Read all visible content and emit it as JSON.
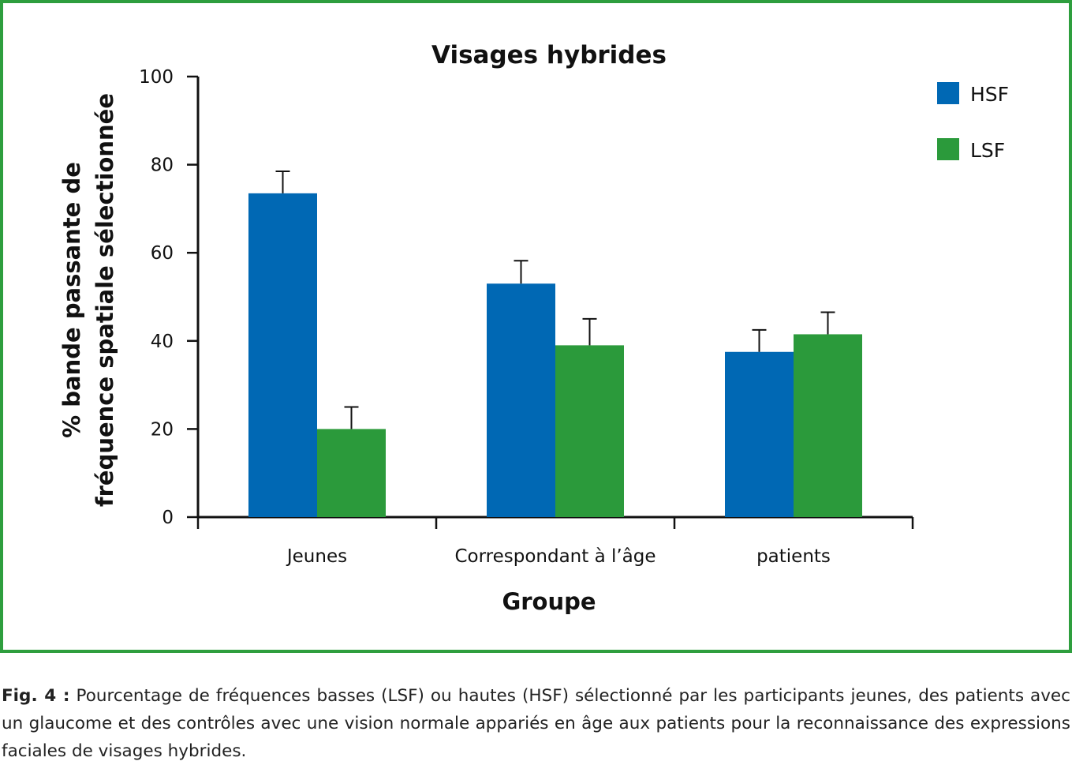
{
  "chart_data": {
    "type": "bar",
    "title": "Visages hybrides",
    "xlabel": "Groupe",
    "ylabel_lines": [
      "% bande passante de",
      "fréquence spatiale sélectionnée"
    ],
    "categories": [
      "Jeunes",
      "Correspondant à l’âge",
      "patients"
    ],
    "series": [
      {
        "name": "HSF",
        "color": "#0068b4",
        "values": [
          73.5,
          53,
          37.5
        ],
        "errors": [
          5,
          5.2,
          5
        ]
      },
      {
        "name": "LSF",
        "color": "#2b9a3b",
        "values": [
          20,
          39,
          41.5
        ],
        "errors": [
          5,
          6,
          5
        ]
      }
    ],
    "ylim": [
      0,
      100
    ],
    "yticks": [
      0,
      20,
      40,
      60,
      80,
      100
    ],
    "grid": false,
    "legend": "top-right"
  },
  "frame_color": "#2e9e3e",
  "caption": {
    "label": "Fig. 4 :",
    "text": "Pourcentage de fréquences basses (LSF) ou hautes (HSF) sélectionné par les participants jeunes, des patients avec un glaucome et des contrôles avec une vision normale appariés en âge aux patients pour la reconnaissance des expressions faciales de visages hybrides."
  }
}
